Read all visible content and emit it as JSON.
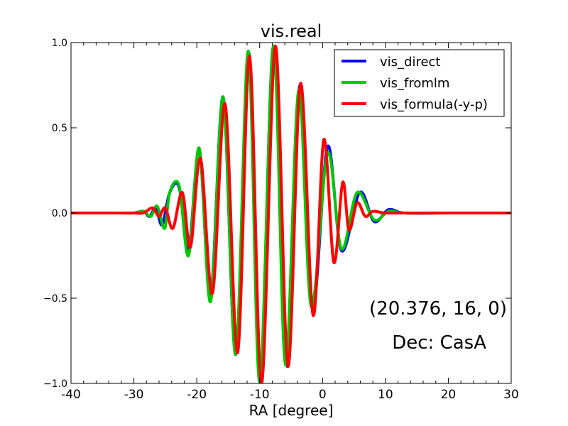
{
  "chart_data": {
    "type": "line",
    "title": "vis.real",
    "xlabel": "RA [degree]",
    "ylabel": "",
    "xlim": [
      -40,
      30
    ],
    "ylim": [
      -1.0,
      1.0
    ],
    "xticks": [
      -40,
      -30,
      -20,
      -10,
      0,
      10,
      20,
      30
    ],
    "xtick_labels": [
      "-40",
      "-30",
      "-20",
      "-10",
      "0",
      "10",
      "20",
      "30"
    ],
    "yticks": [
      -1.0,
      -0.5,
      0.0,
      0.5,
      1.0
    ],
    "ytick_labels": [
      "−1.0",
      "−0.5",
      "0.0",
      "0.5",
      "1.0"
    ],
    "grid": false,
    "legend_position": "top-right",
    "annotations": [
      "(20.376, 16, 0)",
      "Dec: CasA"
    ],
    "series": [
      {
        "name": "vis_direct",
        "color": "#0000ff",
        "x": [
          -40,
          -35,
          -32,
          -30,
          -28.5,
          -27.5,
          -26.5,
          -25.5,
          -24.3,
          -22.8,
          -21.3,
          -19.6,
          -17.8,
          -15.8,
          -13.8,
          -11.7,
          -9.9,
          -7.8,
          -5.6,
          -3.6,
          -1.6,
          0.8,
          3.0,
          5.9,
          8.2,
          10.5,
          13,
          20,
          30
        ],
        "y": [
          0.0,
          0.0,
          0.0,
          0.0,
          0.01,
          -0.02,
          0.03,
          -0.07,
          0.12,
          0.15,
          -0.22,
          0.37,
          -0.49,
          0.68,
          -0.83,
          0.94,
          -0.98,
          0.98,
          -0.9,
          0.75,
          -0.56,
          0.39,
          -0.22,
          0.12,
          -0.05,
          0.02,
          0.0,
          0.0,
          0.0
        ]
      },
      {
        "name": "vis_fromlm",
        "color": "#00c800",
        "x": [
          -40,
          -35,
          -32,
          -30,
          -28.5,
          -27.3,
          -26.3,
          -25.1,
          -24.3,
          -22.8,
          -21.3,
          -19.6,
          -17.8,
          -15.8,
          -13.8,
          -11.8,
          -10.0,
          -7.8,
          -5.9,
          -3.8,
          -1.8,
          0.8,
          3.0,
          5.5,
          8.2,
          10.5,
          13,
          20,
          30
        ],
        "y": [
          0.0,
          0.0,
          0.0,
          0.0,
          0.01,
          -0.02,
          0.04,
          -0.09,
          0.12,
          0.16,
          -0.25,
          0.38,
          -0.52,
          0.68,
          -0.83,
          0.95,
          -0.99,
          0.98,
          -0.89,
          0.72,
          -0.55,
          0.35,
          -0.21,
          0.12,
          -0.04,
          0.01,
          0.0,
          0.0,
          0.0
        ]
      },
      {
        "name": "vis_formula(-y-p)",
        "color": "#ff0000",
        "x": [
          -40,
          -36,
          -32,
          -30,
          -28.5,
          -27,
          -26,
          -25,
          -23.8,
          -22.3,
          -21,
          -19.4,
          -17.5,
          -15.5,
          -13.5,
          -11.6,
          -9.7,
          -7.5,
          -5.5,
          -3.5,
          -1.5,
          0.2,
          1.8,
          3.2,
          4.2,
          5.5,
          6.8,
          8,
          10,
          13,
          20,
          30
        ],
        "y": [
          0.0,
          0.0,
          0.0,
          0.0,
          0.0,
          0.03,
          -0.02,
          0.03,
          -0.09,
          0.12,
          -0.2,
          0.32,
          -0.47,
          0.64,
          -0.82,
          0.92,
          -1.0,
          0.98,
          -0.9,
          0.76,
          -0.6,
          0.43,
          -0.29,
          0.18,
          -0.1,
          0.06,
          -0.02,
          0.01,
          0.0,
          0.0,
          0.0,
          0.0
        ]
      }
    ]
  }
}
